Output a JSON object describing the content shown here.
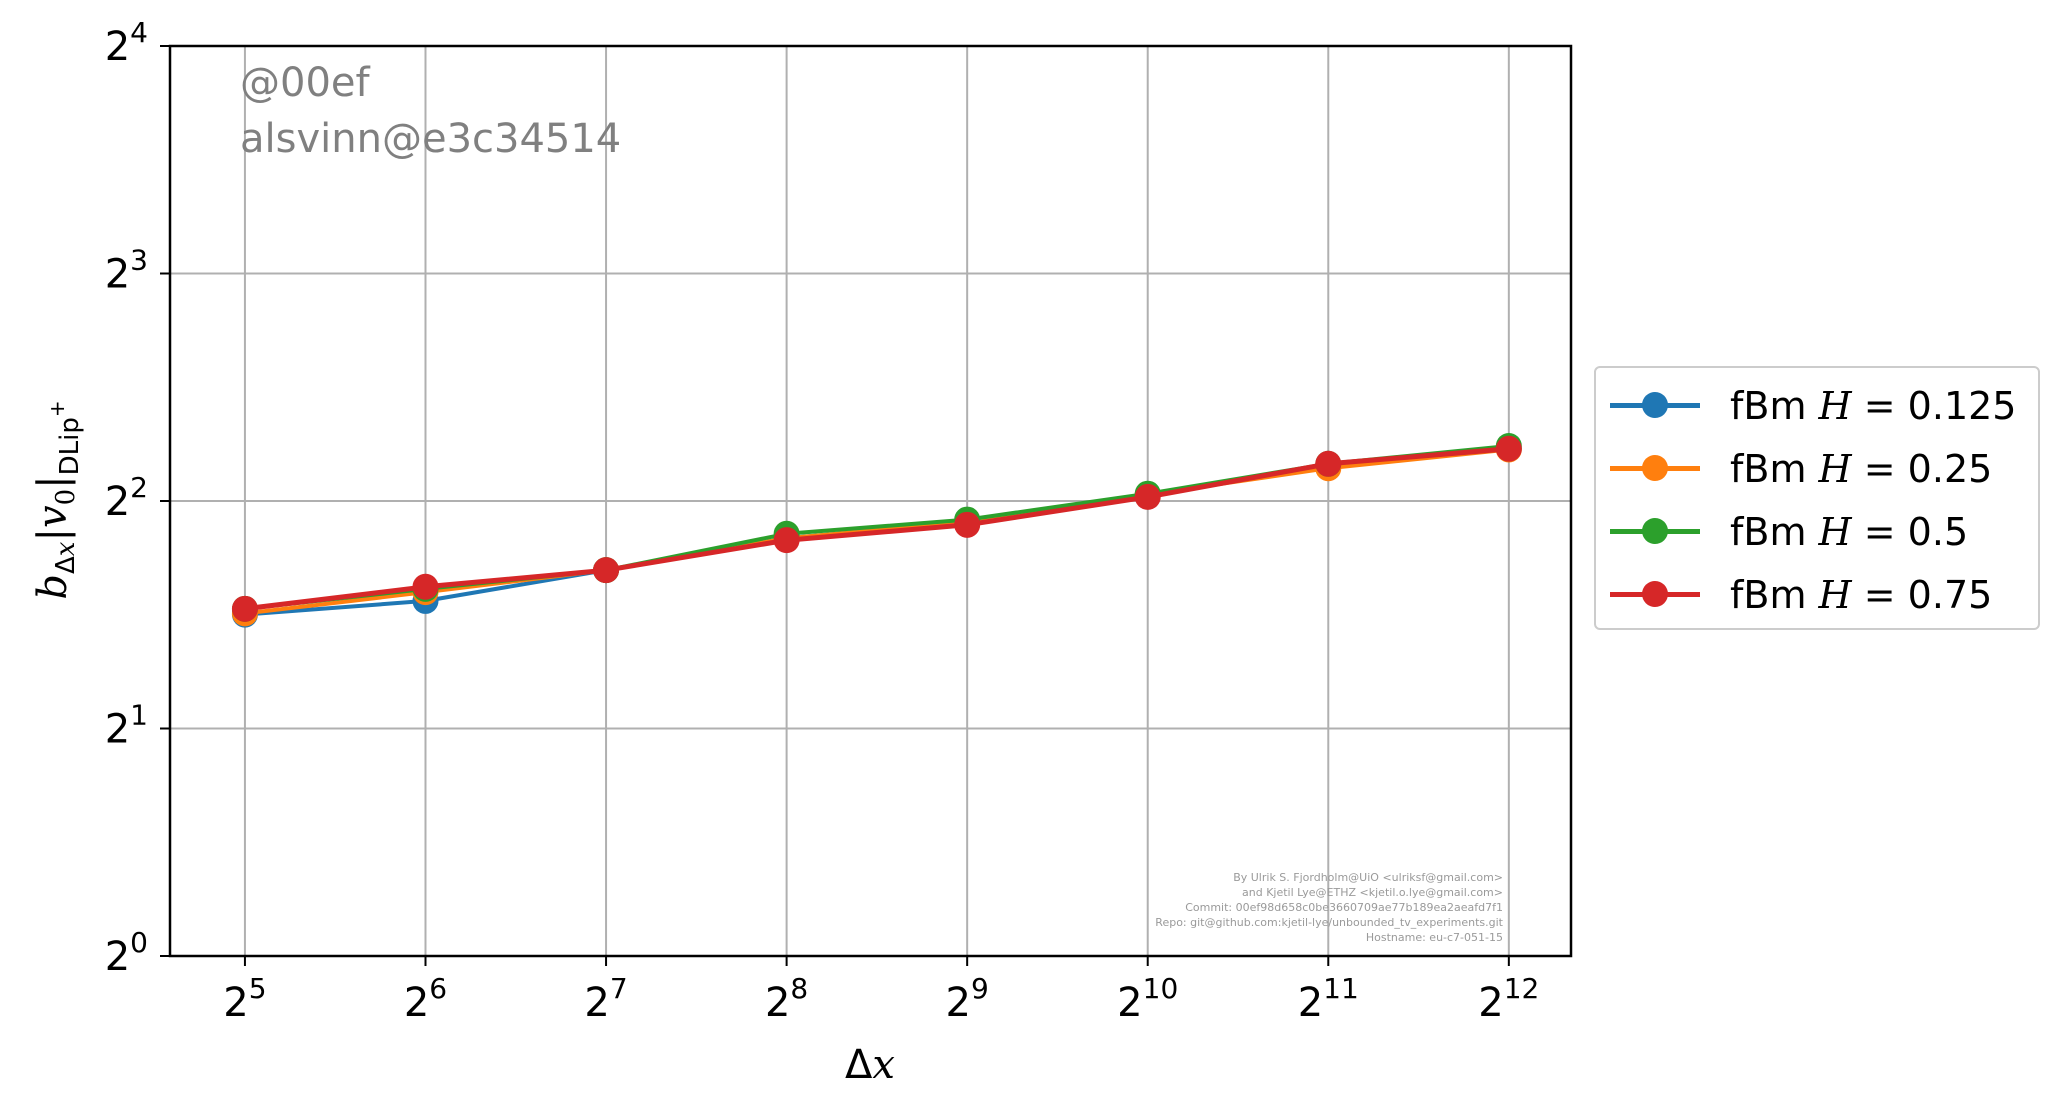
{
  "chart_data": {
    "type": "line",
    "xlabel": "Δx",
    "ylabel": "b_Δx |v_0|_DLip+",
    "x_scale": "log2",
    "y_scale": "log2",
    "xlim": [
      24.0,
      5200
    ],
    "ylim": [
      1,
      16
    ],
    "x_ticks": [
      32,
      64,
      128,
      256,
      512,
      1024,
      2048,
      4096
    ],
    "x_tick_labels": [
      {
        "base": "2",
        "exp": "5"
      },
      {
        "base": "2",
        "exp": "6"
      },
      {
        "base": "2",
        "exp": "7"
      },
      {
        "base": "2",
        "exp": "8"
      },
      {
        "base": "2",
        "exp": "9"
      },
      {
        "base": "2",
        "exp": "10"
      },
      {
        "base": "2",
        "exp": "11"
      },
      {
        "base": "2",
        "exp": "12"
      }
    ],
    "y_ticks": [
      1,
      2,
      4,
      8,
      16
    ],
    "y_tick_labels": [
      {
        "base": "2",
        "exp": "0"
      },
      {
        "base": "2",
        "exp": "1"
      },
      {
        "base": "2",
        "exp": "2"
      },
      {
        "base": "2",
        "exp": "3"
      },
      {
        "base": "2",
        "exp": "4"
      }
    ],
    "grid": true,
    "legend_position": "outside-right",
    "x": [
      32,
      64,
      128,
      256,
      512,
      1024,
      2048,
      4096
    ],
    "series": [
      {
        "name_prefix": "fBm ",
        "name_var": "H",
        "name_value": " = 0.125",
        "color": "#1f77b4",
        "values": [
          2.83,
          2.95,
          3.24,
          3.57,
          3.75,
          4.08,
          4.47,
          4.69
        ]
      },
      {
        "name_prefix": "fBm ",
        "name_var": "H",
        "name_value": " = 0.25",
        "color": "#ff7f0e",
        "values": [
          2.84,
          3.03,
          3.24,
          3.57,
          3.75,
          4.08,
          4.42,
          4.68
        ]
      },
      {
        "name_prefix": "fBm ",
        "name_var": "H",
        "name_value": " = 0.5",
        "color": "#2ca02c",
        "values": [
          2.88,
          3.06,
          3.24,
          3.62,
          3.78,
          4.09,
          4.48,
          4.73
        ]
      },
      {
        "name_prefix": "fBm ",
        "name_var": "H",
        "name_value": " = 0.75",
        "color": "#d62728",
        "values": [
          2.88,
          3.08,
          3.24,
          3.55,
          3.72,
          4.05,
          4.48,
          4.69
        ]
      }
    ]
  },
  "annotations": {
    "commit_short": "@00ef",
    "host": "alsvinn@e3c34514",
    "credits": [
      "By Ulrik S. Fjordholm@UiO <ulriksf@gmail.com>",
      "and Kjetil Lye@ETHZ <kjetil.o.lye@gmail.com>",
      "Commit: 00ef98d658c0be3660709ae77b189ea2aeafd7f1",
      "Repo: git@github.com:kjetil-lye/unbounded_tv_experiments.git",
      "Hostname: eu-c7-051-15"
    ]
  }
}
